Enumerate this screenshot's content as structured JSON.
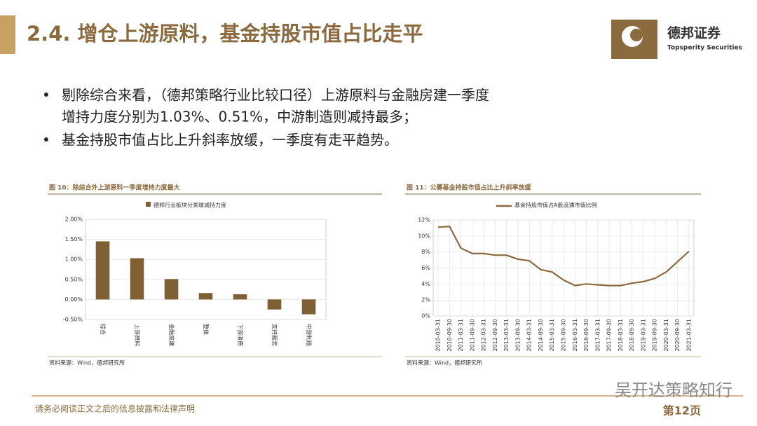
{
  "header": {
    "title": "2.4. 增仓上游原料，基金持股市值占比走平",
    "brand": "德邦证券",
    "brand_en": "Topsperity Securities"
  },
  "bullets": [
    {
      "lines": [
        "剔除综合来看，（德邦策略行业比较口径）上游原料与金融房建一季度",
        "增持力度分别为1.03%、0.51%，中游制造则减持最多；"
      ]
    },
    {
      "lines": [
        "基金持股市值占比上升斜率放缓，一季度有走平趋势。"
      ]
    }
  ],
  "chart_data": [
    {
      "type": "bar",
      "title": "图 10：除综合外上游原料一季度增持力度最大",
      "categories": [
        "综合",
        "上游原料",
        "金融房建",
        "整体",
        "下游消费",
        "支持服务",
        "中游制造"
      ],
      "series": [
        {
          "name": "德邦行业板块分类增减持力度",
          "color": "#7f5f34",
          "values": [
            1.45,
            1.03,
            0.51,
            0.16,
            0.13,
            -0.25,
            -0.37
          ]
        }
      ],
      "ylim": [
        -0.5,
        2
      ],
      "yticks": [
        {
          "value": -0.5,
          "label": "-0.50%"
        },
        {
          "value": 0,
          "label": "0.00%"
        },
        {
          "value": 0.5,
          "label": "0.50%"
        },
        {
          "value": 1,
          "label": "1.00%"
        },
        {
          "value": 1.5,
          "label": "1.50%"
        },
        {
          "value": 2,
          "label": "2.00%"
        }
      ],
      "grid": true,
      "source": "资料来源：Wind，德邦研究所"
    },
    {
      "type": "line",
      "title": "图 11：公募基金持股市值占比上升斜率放缓",
      "categories": [
        "2010-03-31",
        "2010-09-30",
        "2011-03-31",
        "2011-09-30",
        "2012-03-31",
        "2012-09-30",
        "2013-03-31",
        "2013-09-30",
        "2014-03-31",
        "2014-09-30",
        "2015-03-31",
        "2015-09-30",
        "2016-03-31",
        "2016-09-30",
        "2017-03-31",
        "2017-09-30",
        "2018-03-31",
        "2018-09-30",
        "2019-03-31",
        "2019-09-30",
        "2020-03-31",
        "2020-09-30",
        "2021-03-31"
      ],
      "series": [
        {
          "name": "基金持股市值占A股流通市值比例",
          "color": "#8c6a3f",
          "values": [
            11.1,
            11.2,
            8.5,
            7.8,
            7.8,
            7.6,
            7.6,
            7.1,
            6.9,
            5.8,
            5.5,
            4.5,
            3.8,
            4.0,
            3.9,
            3.8,
            3.8,
            4.1,
            4.3,
            4.7,
            5.5,
            6.8,
            8.1
          ]
        }
      ],
      "ylim": [
        0,
        12
      ],
      "yticks": [
        {
          "value": 0,
          "label": "0%"
        },
        {
          "value": 2,
          "label": "2%"
        },
        {
          "value": 4,
          "label": "4%"
        },
        {
          "value": 6,
          "label": "6%"
        },
        {
          "value": 8,
          "label": "8%"
        },
        {
          "value": 10,
          "label": "10%"
        },
        {
          "value": 12,
          "label": "12%"
        }
      ],
      "grid": true,
      "source": "资料来源：Wind，德邦研究所"
    }
  ],
  "footer": {
    "disclaimer": "请务必阅读正文之后的信息披露和法律声明",
    "page": "第12页",
    "watermark": "吴开达策略知行"
  }
}
